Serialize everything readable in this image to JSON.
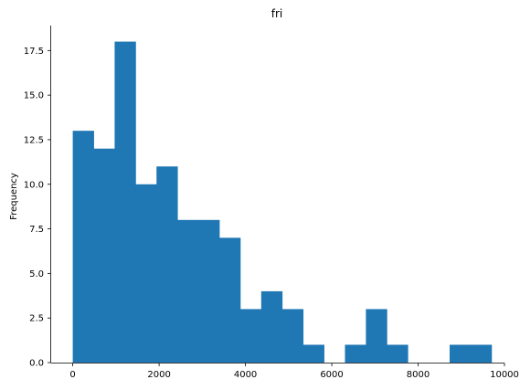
{
  "chart_data": {
    "type": "bar",
    "title": "fri",
    "xlabel": "",
    "ylabel": "Frequency",
    "bar_color": "#1f77b4",
    "xlim": [
      -500,
      10000
    ],
    "ylim": [
      0,
      18.9
    ],
    "grid": false,
    "x_ticks": [
      0,
      2000,
      4000,
      6000,
      8000,
      10000
    ],
    "x_tick_labels": [
      "0",
      "2000",
      "4000",
      "6000",
      "8000",
      "10000"
    ],
    "y_ticks": [
      0,
      2.5,
      5,
      7.5,
      10,
      12.5,
      15,
      17.5
    ],
    "y_tick_labels": [
      "0.0",
      "2.5",
      "5.0",
      "7.5",
      "10.0",
      "12.5",
      "15.0",
      "17.5"
    ],
    "bin_edges": [
      0,
      485,
      970,
      1455,
      1940,
      2425,
      2910,
      3395,
      3880,
      4365,
      4850,
      5335,
      5820,
      6305,
      6790,
      7275,
      7760,
      8245,
      8730,
      9215,
      9700
    ],
    "values": [
      13,
      12,
      18,
      10,
      11,
      8,
      8,
      7,
      3,
      4,
      3,
      1,
      0,
      1,
      3,
      1,
      0,
      0,
      1,
      1
    ]
  }
}
